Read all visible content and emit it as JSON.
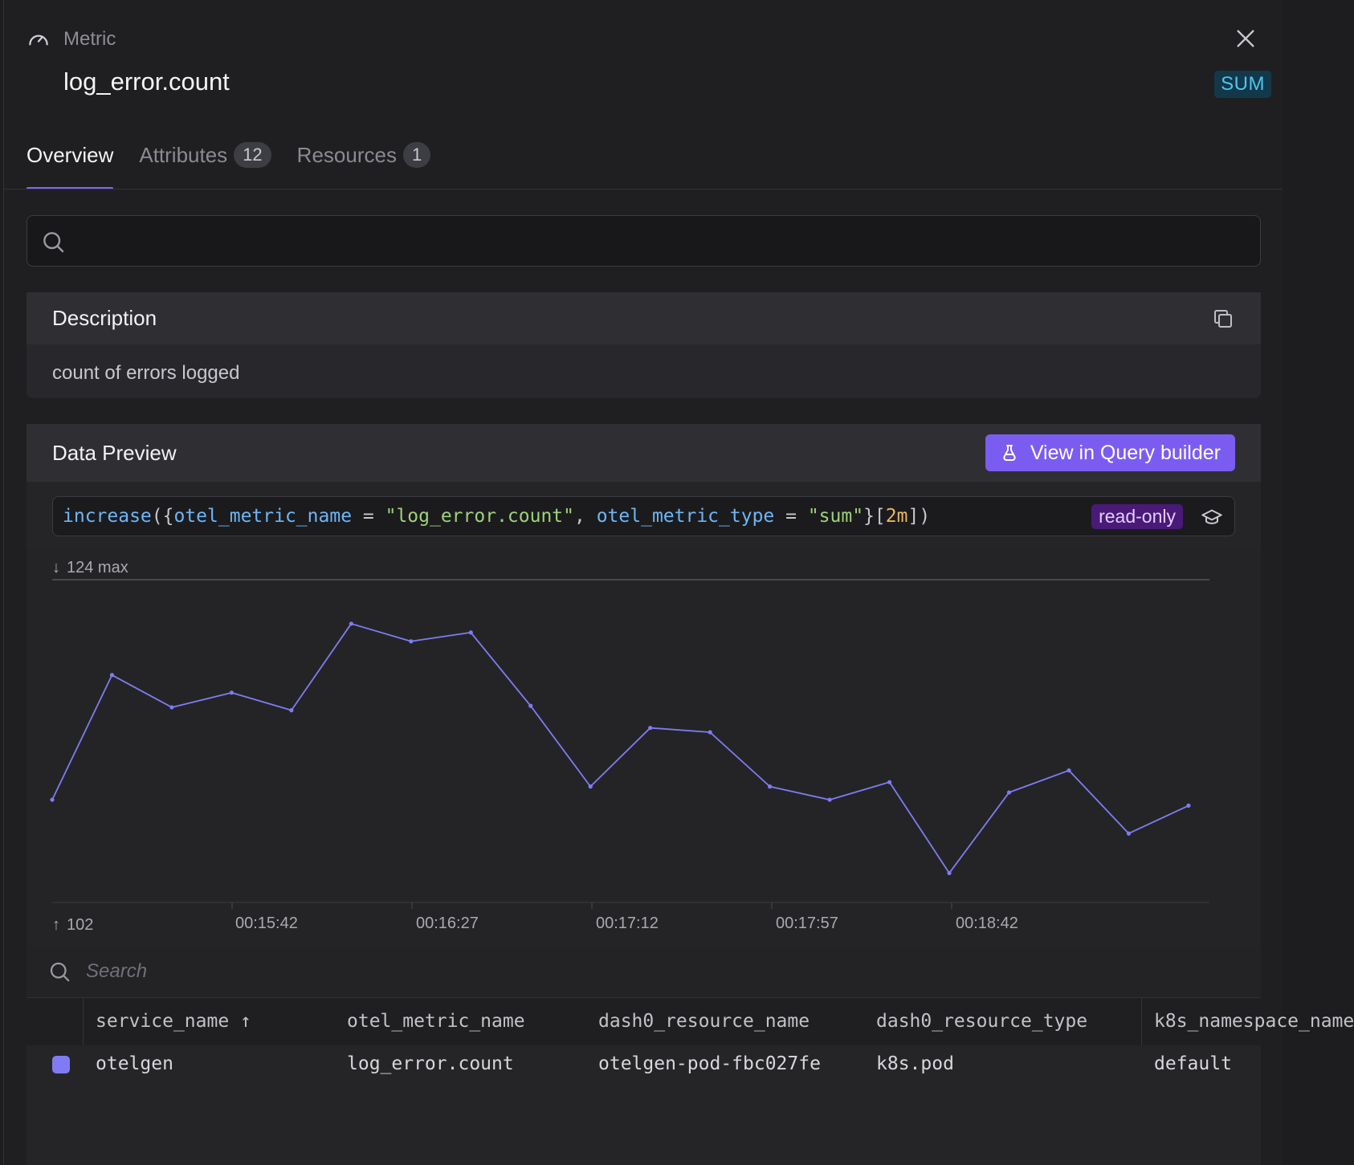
{
  "header": {
    "type_label": "Metric",
    "title": "log_error.count",
    "badge": "SUM"
  },
  "tabs": [
    {
      "label": "Overview",
      "count": null
    },
    {
      "label": "Attributes",
      "count": "12"
    },
    {
      "label": "Resources",
      "count": "1"
    }
  ],
  "search": {
    "placeholder": ""
  },
  "description": {
    "heading": "Description",
    "text": "count of errors logged"
  },
  "preview": {
    "heading": "Data Preview",
    "query_button": "View in Query builder",
    "query": {
      "fn": "increase",
      "open": "({",
      "key1": "otel_metric_name",
      "eq": " = ",
      "val1": "\"log_error.count\"",
      "comma": ", ",
      "key2": "otel_metric_type",
      "val2": "\"sum\"",
      "close1": "}[",
      "range": "2m",
      "close2": "])"
    },
    "readonly_label": "read-only"
  },
  "chart_data": {
    "type": "line",
    "y_max_label": "124 max",
    "y_min_label": "102",
    "ylim": [
      102,
      124
    ],
    "x_ticks": [
      "00:15:42",
      "00:16:27",
      "00:17:12",
      "00:17:57",
      "00:18:42"
    ],
    "series": [
      {
        "name": "otelgen",
        "color": "#7f7cf3",
        "values": [
          109,
          117.5,
          115.3,
          116.3,
          115.1,
          121,
          119.8,
          120.4,
          115.4,
          109.9,
          113.9,
          113.6,
          109.9,
          109,
          110.2,
          104,
          109.5,
          111,
          106.7,
          108.6
        ]
      }
    ]
  },
  "table": {
    "search_placeholder": "Search",
    "columns": [
      "service_name ↑",
      "otel_metric_name",
      "dash0_resource_name",
      "dash0_resource_type",
      "k8s_namespace_name"
    ],
    "rows": [
      [
        "otelgen",
        "log_error.count",
        "otelgen-pod-fbc027fe",
        "k8s.pod",
        "default"
      ]
    ]
  }
}
